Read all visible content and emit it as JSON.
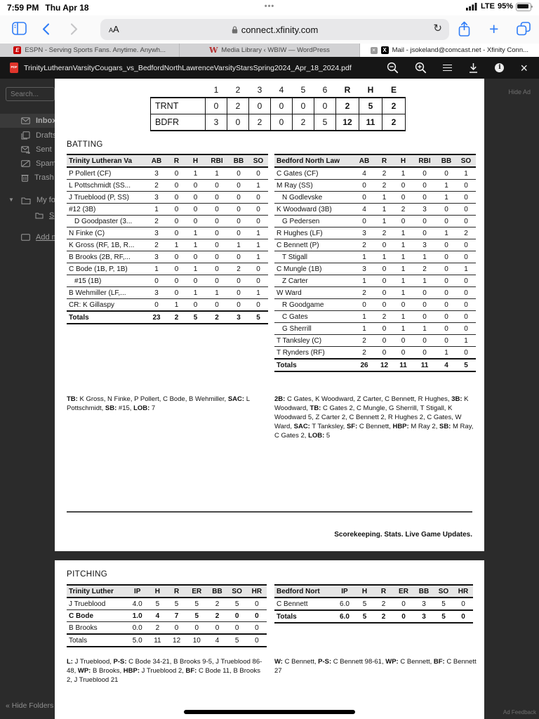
{
  "status_bar": {
    "time": "7:59 PM",
    "date": "Thu Apr 18",
    "dots": "•••",
    "network": "LTE",
    "battery": "95%"
  },
  "browser": {
    "reader_button": "AA",
    "url": "connect.xfinity.com"
  },
  "tabs": [
    {
      "title": "ESPN - Serving Sports Fans. Anytime. Anywh...",
      "favicon_letter": "E"
    },
    {
      "title": "Media Library ‹ WBIW — WordPress",
      "favicon_letter": "W"
    },
    {
      "title": "Mail - jsokeland@comcast.net - Xfinity Conn...",
      "favicon_letter": "X",
      "close_glyph": "×",
      "active": true
    }
  ],
  "pdf_toolbar": {
    "filename": "TrinityLutheranVarsityCougars_vs_BedfordNorthLawrenceVarsityStarsSpring2024_Apr_18_2024.pdf",
    "pdf_badge": "PDF",
    "info_glyph": "i",
    "close_glyph": "×",
    "refresh_glyph": "↻"
  },
  "mail_sidebar": {
    "search_placeholder": "Search...",
    "folders": [
      {
        "label": "Inbox",
        "selected": true
      },
      {
        "label": "Drafts"
      },
      {
        "label": "Sent"
      },
      {
        "label": "Spam"
      },
      {
        "label": "Trash"
      }
    ],
    "my_folders": {
      "caret": "▼",
      "label": "My fol",
      "sub": "S"
    },
    "add_mailbox": "Add m",
    "hide_folders": "« Hide Folders"
  },
  "overlay": {
    "hide_ad": "Hide Ad",
    "ad_feedback": "Ad Feedback"
  },
  "line_score": {
    "columns": [
      "1",
      "2",
      "3",
      "4",
      "5",
      "6",
      "R",
      "H",
      "E"
    ],
    "rows": [
      {
        "team": "TRNT",
        "values": [
          "0",
          "2",
          "0",
          "0",
          "0",
          "0",
          "2",
          "5",
          "2"
        ]
      },
      {
        "team": "BDFR",
        "values": [
          "3",
          "0",
          "2",
          "0",
          "2",
          "5",
          "12",
          "11",
          "2"
        ]
      }
    ]
  },
  "batting": {
    "title": "BATTING",
    "away": {
      "team": "Trinity Lutheran Va",
      "cols": [
        "AB",
        "R",
        "H",
        "RBI",
        "BB",
        "SO"
      ],
      "rows": [
        {
          "name": "P Pollert (CF)",
          "v": [
            "3",
            "0",
            "1",
            "1",
            "0",
            "0"
          ]
        },
        {
          "name": "L Pottschmidt (SS...",
          "v": [
            "2",
            "0",
            "0",
            "0",
            "0",
            "1"
          ]
        },
        {
          "name": "J Trueblood (P, SS)",
          "v": [
            "3",
            "0",
            "0",
            "0",
            "0",
            "0"
          ]
        },
        {
          "name": "#12 (3B)",
          "v": [
            "1",
            "0",
            "0",
            "0",
            "0",
            "0"
          ]
        },
        {
          "name": "D Goodpaster (3...",
          "indent": true,
          "v": [
            "2",
            "0",
            "0",
            "0",
            "0",
            "0"
          ]
        },
        {
          "name": "N Finke (C)",
          "v": [
            "3",
            "0",
            "1",
            "0",
            "0",
            "1"
          ]
        },
        {
          "name": "K Gross (RF, 1B, R...",
          "v": [
            "2",
            "1",
            "1",
            "0",
            "1",
            "1"
          ]
        },
        {
          "name": "B Brooks (2B, RF,...",
          "v": [
            "3",
            "0",
            "0",
            "0",
            "0",
            "1"
          ]
        },
        {
          "name": "C Bode (1B, P, 1B)",
          "v": [
            "1",
            "0",
            "1",
            "0",
            "2",
            "0"
          ]
        },
        {
          "name": "#15 (1B)",
          "indent": true,
          "v": [
            "0",
            "0",
            "0",
            "0",
            "0",
            "0"
          ]
        },
        {
          "name": "B Wehmiller (LF,...",
          "v": [
            "3",
            "0",
            "1",
            "1",
            "0",
            "1"
          ]
        },
        {
          "name": "CR: K Gillaspy",
          "v": [
            "0",
            "1",
            "0",
            "0",
            "0",
            "0"
          ]
        }
      ],
      "totals": {
        "name": "Totals",
        "bold": true,
        "v": [
          "23",
          "2",
          "5",
          "2",
          "3",
          "5"
        ]
      },
      "notes": [
        {
          "b": "TB:",
          "t": " K Gross, N Finke, P Pollert, C Bode, B Wehmiller, "
        },
        {
          "b": "SAC:",
          "t": " L Pottschmidt, "
        },
        {
          "b": "SB:",
          "t": " #15, "
        },
        {
          "b": "LOB:",
          "t": " 7"
        }
      ]
    },
    "home": {
      "team": "Bedford North Law",
      "cols": [
        "AB",
        "R",
        "H",
        "RBI",
        "BB",
        "SO"
      ],
      "rows": [
        {
          "name": "C Gates (CF)",
          "v": [
            "4",
            "2",
            "1",
            "0",
            "0",
            "1"
          ]
        },
        {
          "name": "M Ray (SS)",
          "v": [
            "0",
            "2",
            "0",
            "0",
            "1",
            "0"
          ]
        },
        {
          "name": "N Godlevske",
          "indent": true,
          "v": [
            "0",
            "1",
            "0",
            "0",
            "1",
            "0"
          ]
        },
        {
          "name": "K Woodward (3B)",
          "v": [
            "4",
            "1",
            "2",
            "3",
            "0",
            "0"
          ]
        },
        {
          "name": "G Pedersen",
          "indent": true,
          "v": [
            "0",
            "1",
            "0",
            "0",
            "0",
            "0"
          ]
        },
        {
          "name": "R Hughes (LF)",
          "v": [
            "3",
            "2",
            "1",
            "0",
            "1",
            "2"
          ]
        },
        {
          "name": "C Bennett (P)",
          "v": [
            "2",
            "0",
            "1",
            "3",
            "0",
            "0"
          ]
        },
        {
          "name": "T Stigall",
          "indent": true,
          "v": [
            "1",
            "1",
            "1",
            "1",
            "0",
            "0"
          ]
        },
        {
          "name": "C Mungle (1B)",
          "v": [
            "3",
            "0",
            "1",
            "2",
            "0",
            "1"
          ]
        },
        {
          "name": "Z Carter",
          "indent": true,
          "v": [
            "1",
            "0",
            "1",
            "1",
            "0",
            "0"
          ]
        },
        {
          "name": "W Ward",
          "v": [
            "2",
            "0",
            "1",
            "0",
            "0",
            "0"
          ]
        },
        {
          "name": "R Goodgame",
          "indent": true,
          "v": [
            "0",
            "0",
            "0",
            "0",
            "0",
            "0"
          ]
        },
        {
          "name": "C Gates",
          "indent": true,
          "v": [
            "1",
            "2",
            "1",
            "0",
            "0",
            "0"
          ]
        },
        {
          "name": "G Sherrill",
          "indent": true,
          "v": [
            "1",
            "0",
            "1",
            "1",
            "0",
            "0"
          ]
        },
        {
          "name": "T Tanksley (C)",
          "v": [
            "2",
            "0",
            "0",
            "0",
            "0",
            "1"
          ]
        },
        {
          "name": "T Rynders (RF)",
          "v": [
            "2",
            "0",
            "0",
            "0",
            "1",
            "0"
          ]
        }
      ],
      "totals": {
        "name": "Totals",
        "bold": true,
        "v": [
          "26",
          "12",
          "11",
          "11",
          "4",
          "5"
        ]
      },
      "notes": [
        {
          "b": "2B:",
          "t": " C Gates, K Woodward, Z Carter, C Bennett, R Hughes, "
        },
        {
          "b": "3B:",
          "t": " K Woodward, "
        },
        {
          "b": "TB:",
          "t": " C Gates 2, C Mungle, G Sherrill, T Stigall, K Woodward 5, Z Carter 2, C Bennett 2, R Hughes 2, C Gates, W Ward, "
        },
        {
          "b": "SAC:",
          "t": " T Tanksley, "
        },
        {
          "b": "SF:",
          "t": " C Bennett, "
        },
        {
          "b": "HBP:",
          "t": " M Ray 2, "
        },
        {
          "b": "SB:",
          "t": " M Ray, C Gates 2, "
        },
        {
          "b": "LOB:",
          "t": " 5"
        }
      ]
    }
  },
  "tagline": "Scorekeeping. Stats. Live Game Updates.",
  "pitching": {
    "title": "PITCHING",
    "away": {
      "team": "Trinity Luther",
      "cols": [
        "IP",
        "H",
        "R",
        "ER",
        "BB",
        "SO",
        "HR"
      ],
      "rows": [
        {
          "name": "J Trueblood",
          "v": [
            "4.0",
            "5",
            "5",
            "5",
            "2",
            "5",
            "0"
          ]
        },
        {
          "name": "C Bode",
          "bold": true,
          "v": [
            "1.0",
            "4",
            "7",
            "5",
            "2",
            "0",
            "0"
          ]
        },
        {
          "name": "B Brooks",
          "v": [
            "0.0",
            "2",
            "0",
            "0",
            "0",
            "0",
            "0"
          ]
        }
      ],
      "totals": {
        "name": "Totals",
        "bold": false,
        "v": [
          "5.0",
          "11",
          "12",
          "10",
          "4",
          "5",
          "0"
        ]
      },
      "notes": [
        {
          "b": "L:",
          "t": " J Trueblood, "
        },
        {
          "b": "P-S:",
          "t": " C Bode 34-21, B Brooks 9-5, J Trueblood 86-48, "
        },
        {
          "b": "WP:",
          "t": " B Brooks, "
        },
        {
          "b": "HBP:",
          "t": " J Trueblood 2, "
        },
        {
          "b": "BF:",
          "t": " C Bode 11, B Brooks 2, J Trueblood 21"
        }
      ]
    },
    "home": {
      "team": "Bedford Nort",
      "cols": [
        "IP",
        "H",
        "R",
        "ER",
        "BB",
        "SO",
        "HR"
      ],
      "rows": [
        {
          "name": "C Bennett",
          "v": [
            "6.0",
            "5",
            "2",
            "0",
            "3",
            "5",
            "0"
          ]
        }
      ],
      "totals": {
        "name": "Totals",
        "bold": true,
        "v": [
          "6.0",
          "5",
          "2",
          "0",
          "3",
          "5",
          "0"
        ]
      },
      "notes": [
        {
          "b": "W:",
          "t": " C Bennett, "
        },
        {
          "b": "P-S:",
          "t": " C Bennett 98-61, "
        },
        {
          "b": "WP:",
          "t": " C Bennett, "
        },
        {
          "b": "BF:",
          "t": " C Bennett 27"
        }
      ]
    }
  },
  "colors": {
    "accent_blue": "#2f7cf6",
    "pdf_red": "#e0352b",
    "toolbar_dark": "#161616",
    "dim_bg": "#2b2b2b",
    "table_header_bg": "#e6e6e6"
  }
}
